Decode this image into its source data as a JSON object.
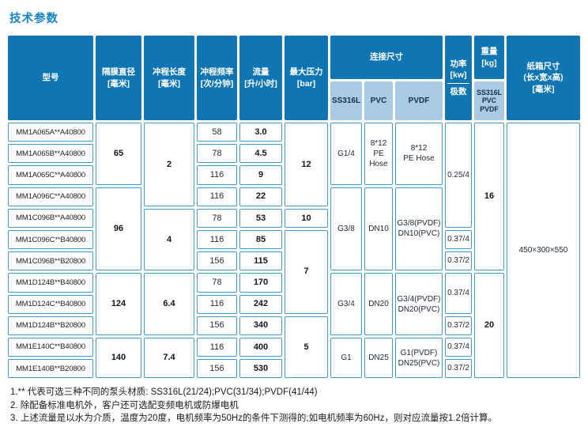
{
  "title": "技术参数",
  "colors": {
    "header_bg": "#0f76b3",
    "subheader_bg": "#a9cae4",
    "cell_border": "#419bd2",
    "title_text": "#1683c5"
  },
  "table": {
    "cells": [
      {
        "name": "header-model",
        "cls": "h",
        "c": 1,
        "r": 1,
        "rs": 2,
        "text": "型号"
      },
      {
        "name": "header-diaphragm-diameter",
        "cls": "h",
        "c": 2,
        "r": 1,
        "rs": 2,
        "text": "隔膜直径\n[毫米]"
      },
      {
        "name": "header-stroke-length",
        "cls": "h",
        "c": 3,
        "r": 1,
        "rs": 2,
        "text": "冲程长度\n[毫米]"
      },
      {
        "name": "header-stroke-frequency",
        "cls": "h",
        "c": 4,
        "r": 1,
        "rs": 2,
        "text": "冲程频率\n[次/分钟]"
      },
      {
        "name": "header-flow-rate",
        "cls": "h",
        "c": 5,
        "r": 1,
        "rs": 2,
        "text": "流量\n[升/小时]"
      },
      {
        "name": "header-max-pressure",
        "cls": "h",
        "c": 6,
        "r": 1,
        "rs": 2,
        "text": "最大压力\n[bar]"
      },
      {
        "name": "header-connection-size",
        "cls": "h",
        "c": 7,
        "cs": 3,
        "r": 1,
        "text": "连接尺寸"
      },
      {
        "name": "subheader-ss316l",
        "cls": "sh",
        "c": 7,
        "r": 2,
        "text": "SS316L"
      },
      {
        "name": "subheader-pvc",
        "cls": "sh",
        "c": 8,
        "r": 2,
        "text": "PVC"
      },
      {
        "name": "subheader-pvdf",
        "cls": "sh",
        "c": 9,
        "r": 2,
        "text": "PVDF"
      },
      {
        "name": "header-power",
        "cls": "h hpower",
        "c": 10,
        "r": 1,
        "rs": 2,
        "top": "功率\n[kw]",
        "bottom": "极数"
      },
      {
        "name": "header-weight",
        "cls": "h",
        "c": 11,
        "r": 1,
        "text": "重量\n[kg]"
      },
      {
        "name": "subheader-weight-materials",
        "cls": "sh shsmall",
        "c": 11,
        "r": 2,
        "text": "SS316L\nPVC\nPVDF"
      },
      {
        "name": "header-carton-size",
        "cls": "h",
        "c": 12,
        "r": 1,
        "rs": 2,
        "text": "纸箱尺寸\n(长x宽x高)\n[毫米]"
      },
      {
        "name": "model-cell",
        "cls": "d model",
        "c": 1,
        "r": 3,
        "text": "MM1A065A**A40800"
      },
      {
        "name": "model-cell",
        "cls": "d model",
        "c": 1,
        "r": 4,
        "text": "MM1A065B**A40800"
      },
      {
        "name": "model-cell",
        "cls": "d model",
        "c": 1,
        "r": 5,
        "text": "MM1A065C**A40800"
      },
      {
        "name": "model-cell",
        "cls": "d model",
        "c": 1,
        "r": 6,
        "text": "MM1A096C**A40800"
      },
      {
        "name": "model-cell",
        "cls": "d model",
        "c": 1,
        "r": 7,
        "text": "MM1C096B**A40800"
      },
      {
        "name": "model-cell",
        "cls": "d model",
        "c": 1,
        "r": 8,
        "text": "MM1C096C**B40800"
      },
      {
        "name": "model-cell",
        "cls": "d model",
        "c": 1,
        "r": 9,
        "text": "MM1C096B**B20800"
      },
      {
        "name": "model-cell",
        "cls": "d model",
        "c": 1,
        "r": 10,
        "text": "MM1D124B**B40800"
      },
      {
        "name": "model-cell",
        "cls": "d model",
        "c": 1,
        "r": 11,
        "text": "MM1D124C**B40800"
      },
      {
        "name": "model-cell",
        "cls": "d model",
        "c": 1,
        "r": 12,
        "text": "MM1D124B**B20800"
      },
      {
        "name": "model-cell",
        "cls": "d model",
        "c": 1,
        "r": 13,
        "text": "MM1E140C**B40800"
      },
      {
        "name": "model-cell",
        "cls": "d model",
        "c": 1,
        "r": 14,
        "text": "MM1E140B**B20800"
      },
      {
        "name": "diaphragm-value",
        "cls": "d bold",
        "c": 2,
        "r": 3,
        "rs": 3,
        "text": "65"
      },
      {
        "name": "diaphragm-value",
        "cls": "d bold",
        "c": 2,
        "r": 6,
        "rs": 4,
        "text": "96"
      },
      {
        "name": "diaphragm-value",
        "cls": "d bold",
        "c": 2,
        "r": 10,
        "rs": 3,
        "text": "124"
      },
      {
        "name": "diaphragm-value",
        "cls": "d bold",
        "c": 2,
        "r": 13,
        "rs": 2,
        "text": "140"
      },
      {
        "name": "stroke-value",
        "cls": "d bold",
        "c": 3,
        "r": 3,
        "rs": 4,
        "text": "2"
      },
      {
        "name": "stroke-value",
        "cls": "d bold",
        "c": 3,
        "r": 7,
        "rs": 3,
        "text": "4"
      },
      {
        "name": "stroke-value",
        "cls": "d bold",
        "c": 3,
        "r": 10,
        "rs": 3,
        "text": "6.4"
      },
      {
        "name": "stroke-value",
        "cls": "d bold",
        "c": 3,
        "r": 13,
        "rs": 2,
        "text": "7.4"
      },
      {
        "name": "frequency-value",
        "cls": "d",
        "c": 4,
        "r": 3,
        "text": "58"
      },
      {
        "name": "frequency-value",
        "cls": "d",
        "c": 4,
        "r": 4,
        "text": "78"
      },
      {
        "name": "frequency-value",
        "cls": "d",
        "c": 4,
        "r": 5,
        "text": "116"
      },
      {
        "name": "frequency-value",
        "cls": "d",
        "c": 4,
        "r": 6,
        "text": "116"
      },
      {
        "name": "frequency-value",
        "cls": "d",
        "c": 4,
        "r": 7,
        "text": "78"
      },
      {
        "name": "frequency-value",
        "cls": "d",
        "c": 4,
        "r": 8,
        "text": "116"
      },
      {
        "name": "frequency-value",
        "cls": "d",
        "c": 4,
        "r": 9,
        "text": "156"
      },
      {
        "name": "frequency-value",
        "cls": "d",
        "c": 4,
        "r": 10,
        "text": "78"
      },
      {
        "name": "frequency-value",
        "cls": "d",
        "c": 4,
        "r": 11,
        "text": "116"
      },
      {
        "name": "frequency-value",
        "cls": "d",
        "c": 4,
        "r": 12,
        "text": "156"
      },
      {
        "name": "frequency-value",
        "cls": "d",
        "c": 4,
        "r": 13,
        "text": "116"
      },
      {
        "name": "frequency-value",
        "cls": "d",
        "c": 4,
        "r": 14,
        "text": "156"
      },
      {
        "name": "flow-value",
        "cls": "d bold",
        "c": 5,
        "r": 3,
        "text": "3.0"
      },
      {
        "name": "flow-value",
        "cls": "d bold",
        "c": 5,
        "r": 4,
        "text": "4.5"
      },
      {
        "name": "flow-value",
        "cls": "d bold",
        "c": 5,
        "r": 5,
        "text": "9"
      },
      {
        "name": "flow-value",
        "cls": "d bold",
        "c": 5,
        "r": 6,
        "text": "22"
      },
      {
        "name": "flow-value",
        "cls": "d bold",
        "c": 5,
        "r": 7,
        "text": "53"
      },
      {
        "name": "flow-value",
        "cls": "d bold",
        "c": 5,
        "r": 8,
        "text": "85"
      },
      {
        "name": "flow-value",
        "cls": "d bold",
        "c": 5,
        "r": 9,
        "text": "115"
      },
      {
        "name": "flow-value",
        "cls": "d bold",
        "c": 5,
        "r": 10,
        "text": "170"
      },
      {
        "name": "flow-value",
        "cls": "d bold",
        "c": 5,
        "r": 11,
        "text": "242"
      },
      {
        "name": "flow-value",
        "cls": "d bold",
        "c": 5,
        "r": 12,
        "text": "340"
      },
      {
        "name": "flow-value",
        "cls": "d bold",
        "c": 5,
        "r": 13,
        "text": "400"
      },
      {
        "name": "flow-value",
        "cls": "d bold",
        "c": 5,
        "r": 14,
        "text": "530"
      },
      {
        "name": "pressure-value",
        "cls": "d bold",
        "c": 6,
        "r": 3,
        "rs": 4,
        "text": "12"
      },
      {
        "name": "pressure-value",
        "cls": "d bold",
        "c": 6,
        "r": 7,
        "text": "10"
      },
      {
        "name": "pressure-value",
        "cls": "d bold",
        "c": 6,
        "r": 8,
        "rs": 4,
        "text": "7"
      },
      {
        "name": "pressure-value",
        "cls": "d bold",
        "c": 6,
        "r": 12,
        "rs": 3,
        "text": "5"
      },
      {
        "name": "conn-ss316l-value",
        "cls": "d conn",
        "c": 7,
        "r": 3,
        "rs": 3,
        "text": "G1/4"
      },
      {
        "name": "conn-ss316l-value",
        "cls": "d conn",
        "c": 7,
        "r": 6,
        "rs": 4,
        "text": "G3/8"
      },
      {
        "name": "conn-ss316l-value",
        "cls": "d conn",
        "c": 7,
        "r": 10,
        "rs": 3,
        "text": "G3/4"
      },
      {
        "name": "conn-ss316l-value",
        "cls": "d conn",
        "c": 7,
        "r": 13,
        "rs": 2,
        "text": "G1"
      },
      {
        "name": "conn-pvc-value",
        "cls": "d conn",
        "c": 8,
        "r": 3,
        "rs": 3,
        "text": "8*12\nPE\nHose"
      },
      {
        "name": "conn-pvc-value",
        "cls": "d conn",
        "c": 8,
        "r": 6,
        "rs": 4,
        "text": "DN10"
      },
      {
        "name": "conn-pvc-value",
        "cls": "d conn",
        "c": 8,
        "r": 10,
        "rs": 3,
        "text": "DN20"
      },
      {
        "name": "conn-pvc-value",
        "cls": "d conn",
        "c": 8,
        "r": 13,
        "rs": 2,
        "text": "DN25"
      },
      {
        "name": "conn-pvdf-value",
        "cls": "d conn",
        "c": 9,
        "r": 3,
        "rs": 3,
        "text": "8*12\nPE Hose"
      },
      {
        "name": "conn-pvdf-value",
        "cls": "d conn",
        "c": 9,
        "r": 6,
        "rs": 4,
        "text": "G3/8(PVDF)\nDN10(PVC)"
      },
      {
        "name": "conn-pvdf-value",
        "cls": "d conn",
        "c": 9,
        "r": 10,
        "rs": 3,
        "text": "G3/4(PVDF)\nDN20(PVC)"
      },
      {
        "name": "conn-pvdf-value",
        "cls": "d conn",
        "c": 9,
        "r": 13,
        "rs": 2,
        "text": "G1(PVDF)\nDN25(PVC)"
      },
      {
        "name": "power-value",
        "cls": "d small",
        "c": 10,
        "r": 3,
        "rs": 5,
        "text": "0.25/4"
      },
      {
        "name": "power-value",
        "cls": "d small",
        "c": 10,
        "r": 8,
        "text": "0.37/4"
      },
      {
        "name": "power-value",
        "cls": "d small",
        "c": 10,
        "r": 9,
        "text": "0.37/2"
      },
      {
        "name": "power-value",
        "cls": "d small",
        "c": 10,
        "r": 10,
        "rs": 2,
        "text": "0.37/4"
      },
      {
        "name": "power-value",
        "cls": "d small",
        "c": 10,
        "r": 12,
        "text": "0.37/2"
      },
      {
        "name": "power-value",
        "cls": "d small",
        "c": 10,
        "r": 13,
        "text": "0.37/4"
      },
      {
        "name": "power-value",
        "cls": "d small",
        "c": 10,
        "r": 14,
        "text": "0.37/2"
      },
      {
        "name": "weight-value",
        "cls": "d bold",
        "c": 11,
        "r": 3,
        "rs": 7,
        "text": "16"
      },
      {
        "name": "weight-value",
        "cls": "d bold",
        "c": 11,
        "r": 10,
        "rs": 5,
        "text": "20"
      },
      {
        "name": "carton-value",
        "cls": "d small",
        "c": 12,
        "r": 3,
        "rs": 12,
        "text": "450×300×550"
      }
    ]
  },
  "notes": [
    "1.** 代表可选三种不同的泵头材质: SS316L(21/24);PVC(31/34);PVDF(41/44)",
    "2. 除配备标准电机外，客户还可选配变频电机或防爆电机",
    "3. 上述流量是以水为介质，温度为20度，电机频率为50Hz的条件下测得的;如电机频率为60Hz，则对应流量按1.2倍计算。"
  ]
}
